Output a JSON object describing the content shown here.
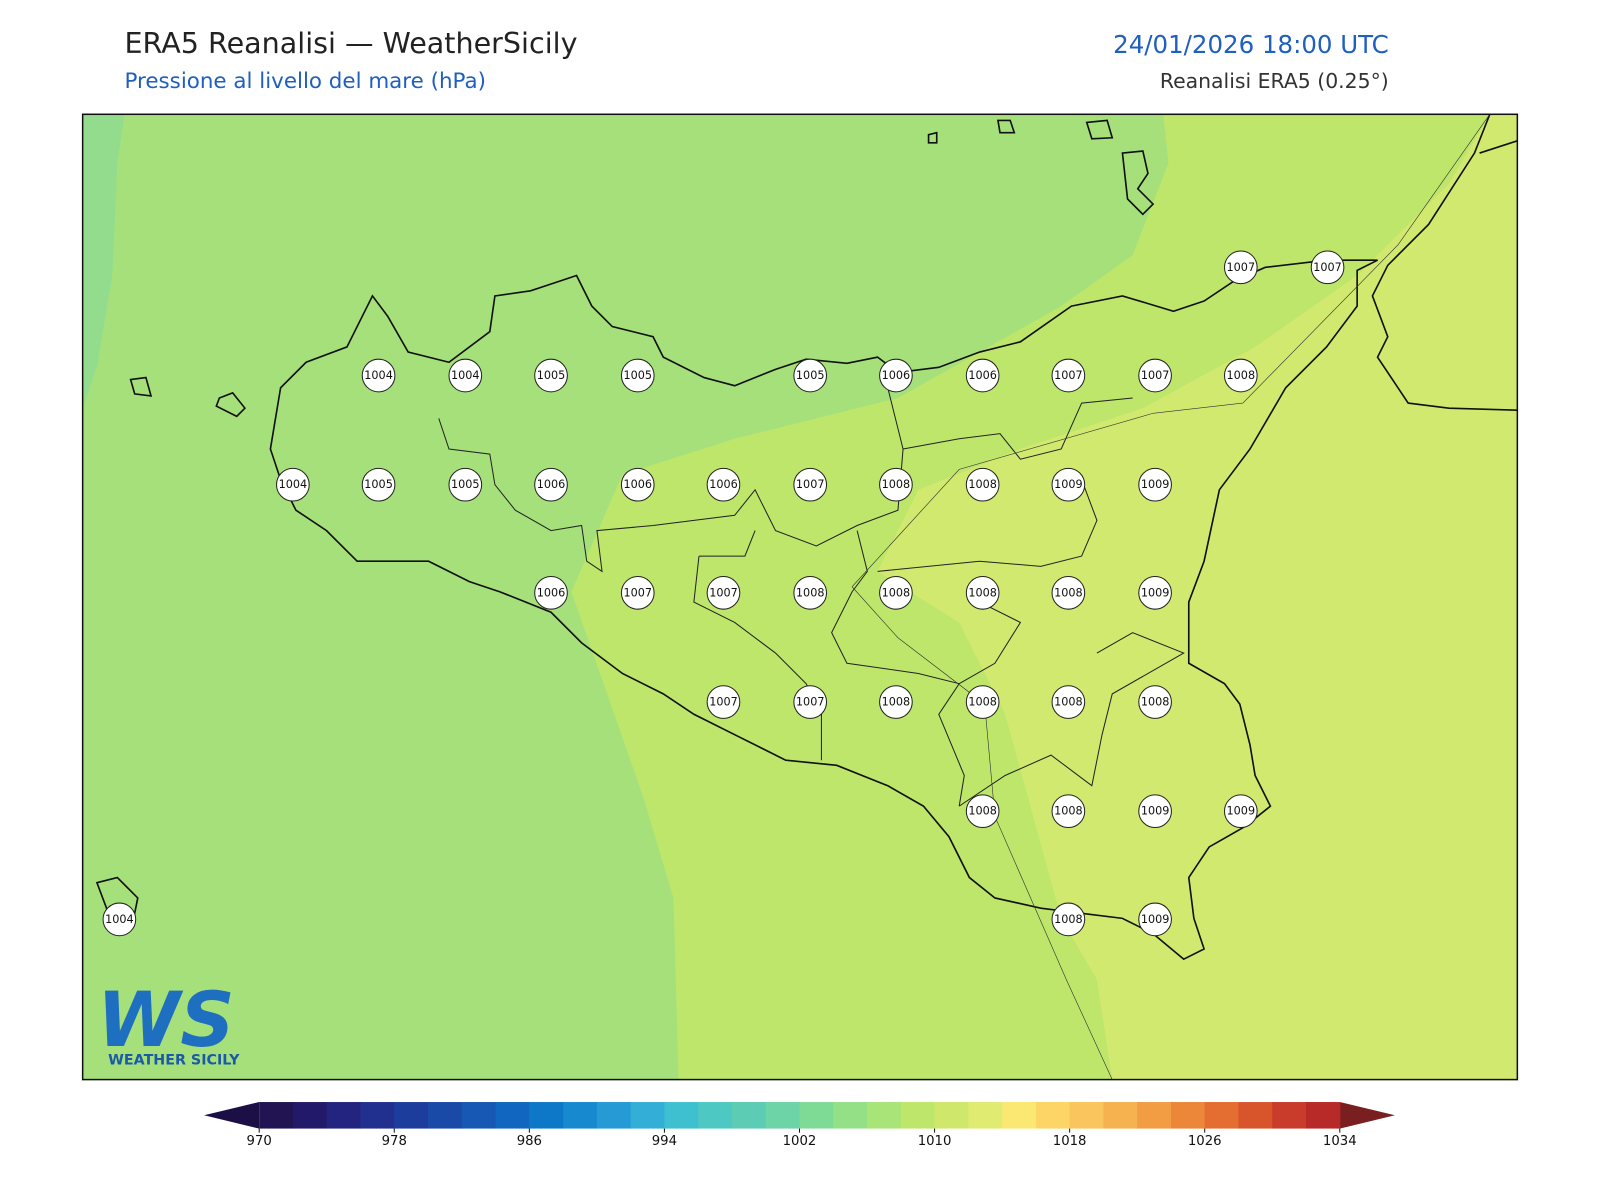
{
  "title": "ERA5 Reanalisi — WeatherSicily",
  "subtitle": "Pressione al livello del mare (hPa)",
  "datetime": "24/01/2026 18:00 UTC",
  "source": "Reanalisi ERA5 (0.25°)",
  "stations": [
    1007,
    1007,
    1004,
    1004,
    1005,
    1005,
    1005,
    1006,
    1006,
    1007,
    1007,
    1008,
    1004,
    1005,
    1005,
    1006,
    1006,
    1006,
    1007,
    1008,
    1008,
    1009,
    1009,
    1006,
    1007,
    1007,
    1008,
    1008,
    1008,
    1008,
    1009,
    1007,
    1007,
    1008,
    1008,
    1008,
    1008,
    1008,
    1008,
    1009,
    1009,
    1004,
    1008,
    1009
  ],
  "colorbar": {
    "range": [
      970,
      1034
    ],
    "ticks": [
      970,
      978,
      986,
      994,
      1002,
      1010,
      1018,
      1026,
      1034
    ],
    "under": "#1c0f45",
    "over": "#7a1f1f",
    "colors": [
      "#221452",
      "#23196a",
      "#232380",
      "#21308f",
      "#1d3d9c",
      "#1a4aa8",
      "#1658b4",
      "#1167c0",
      "#0d78c8",
      "#1689cf",
      "#259ad4",
      "#33aed6",
      "#3fc0d0",
      "#4ec8c3",
      "#5ccdb4",
      "#6cd4a6",
      "#7edb96",
      "#93e086",
      "#a8e477",
      "#bde66b",
      "#cfe86c",
      "#e0eb72",
      "#fbe872",
      "#fcd566",
      "#f9c55c",
      "#f6b24f",
      "#f29d44",
      "#ec8639",
      "#e46d31",
      "#d8552c",
      "#c93b2a",
      "#b82a28"
    ]
  },
  "logo": {
    "letters": "WS",
    "name": "WEATHER SICILY"
  }
}
